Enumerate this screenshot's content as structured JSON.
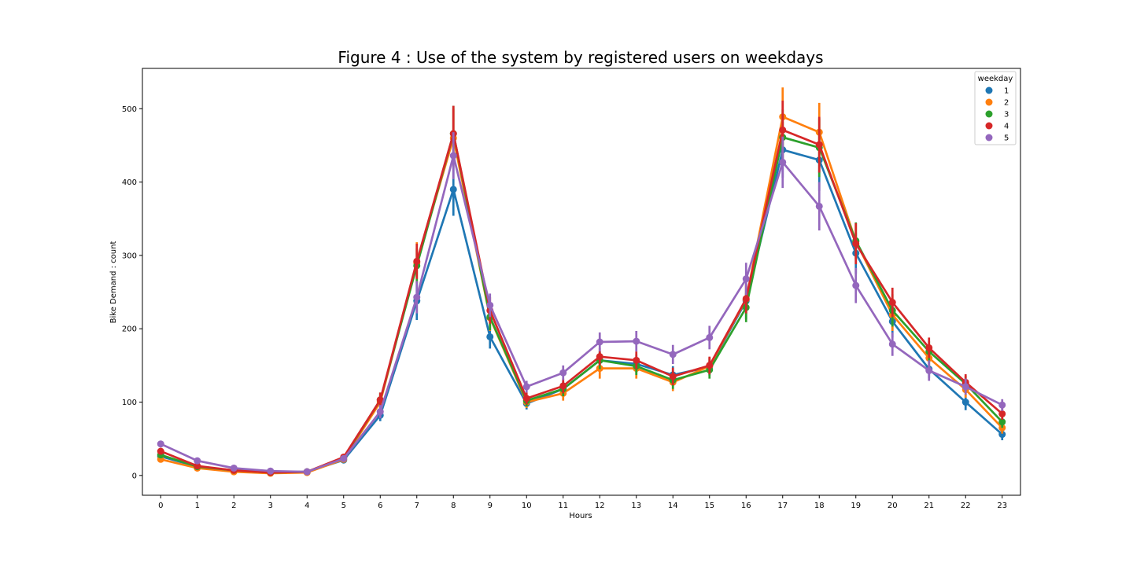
{
  "chart_data": {
    "type": "line",
    "title": "Figure 4 : Use of the system by registered users on weekdays",
    "xlabel": "Hours",
    "ylabel": "Bike Demand : count",
    "categories": [
      "0",
      "1",
      "2",
      "3",
      "4",
      "5",
      "6",
      "7",
      "8",
      "9",
      "10",
      "11",
      "12",
      "13",
      "14",
      "15",
      "16",
      "17",
      "18",
      "19",
      "20",
      "21",
      "22",
      "23"
    ],
    "ylim": [
      -27,
      555
    ],
    "yticks": [
      0,
      100,
      200,
      300,
      400,
      500
    ],
    "grid": false,
    "legend": {
      "title": "weekday",
      "placement": "top-right"
    },
    "series": [
      {
        "name": "1",
        "color": "#1f77b4",
        "values": [
          26,
          12,
          7,
          4,
          5,
          21,
          82,
          238,
          390,
          189,
          98,
          118,
          157,
          152,
          137,
          148,
          238,
          444,
          430,
          303,
          210,
          145,
          100,
          56
        ],
        "ci": [
          3,
          2,
          1,
          1,
          1,
          2,
          8,
          26,
          36,
          16,
          8,
          9,
          12,
          13,
          12,
          12,
          25,
          38,
          42,
          28,
          22,
          12,
          11,
          8
        ]
      },
      {
        "name": "2",
        "color": "#ff7f0e",
        "values": [
          22,
          10,
          5,
          3,
          4,
          22,
          100,
          290,
          460,
          215,
          100,
          112,
          146,
          146,
          127,
          149,
          240,
          489,
          468,
          319,
          219,
          160,
          117,
          65
        ],
        "ci": [
          3,
          2,
          1,
          1,
          1,
          2,
          10,
          28,
          40,
          18,
          8,
          10,
          14,
          14,
          12,
          12,
          20,
          40,
          40,
          25,
          22,
          14,
          11,
          8
        ]
      },
      {
        "name": "3",
        "color": "#2ca02c",
        "values": [
          28,
          12,
          7,
          4,
          5,
          24,
          103,
          286,
          466,
          216,
          102,
          118,
          157,
          149,
          130,
          144,
          229,
          461,
          447,
          320,
          225,
          169,
          125,
          73
        ],
        "ci": [
          3,
          2,
          1,
          1,
          1,
          2,
          10,
          24,
          38,
          18,
          8,
          10,
          12,
          12,
          12,
          12,
          20,
          38,
          40,
          25,
          22,
          14,
          11,
          8
        ]
      },
      {
        "name": "4",
        "color": "#d62728",
        "values": [
          33,
          13,
          7,
          4,
          5,
          25,
          103,
          292,
          466,
          225,
          105,
          122,
          162,
          157,
          135,
          150,
          241,
          471,
          451,
          316,
          236,
          174,
          127,
          84
        ],
        "ci": [
          3,
          2,
          1,
          1,
          1,
          2,
          10,
          24,
          38,
          18,
          8,
          10,
          12,
          12,
          12,
          12,
          20,
          40,
          38,
          28,
          20,
          14,
          11,
          8
        ]
      },
      {
        "name": "5",
        "color": "#9467bd",
        "values": [
          43,
          20,
          10,
          6,
          5,
          23,
          87,
          243,
          436,
          232,
          121,
          140,
          182,
          183,
          165,
          188,
          268,
          427,
          367,
          259,
          179,
          143,
          121,
          96
        ],
        "ci": [
          3,
          2,
          1,
          1,
          1,
          2,
          9,
          22,
          32,
          16,
          8,
          10,
          13,
          14,
          13,
          16,
          22,
          35,
          33,
          24,
          16,
          14,
          11,
          8
        ]
      }
    ]
  }
}
